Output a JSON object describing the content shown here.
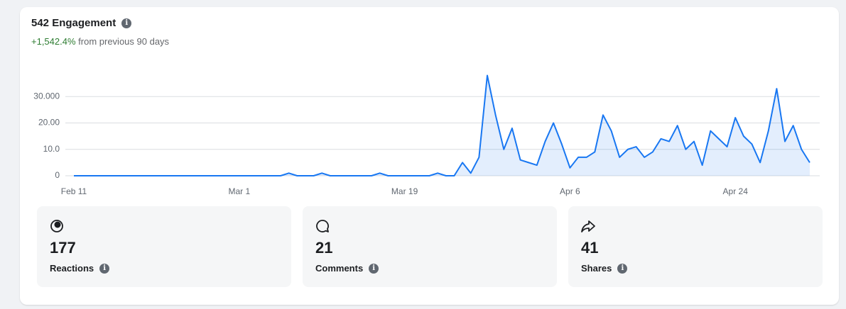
{
  "header": {
    "title": "542 Engagement",
    "change": "+1,542.4%",
    "change_text": "from previous 90 days"
  },
  "chart_data": {
    "type": "area",
    "color": "#1877f2",
    "categories": [
      "Feb 11",
      null,
      null,
      null,
      null,
      null,
      null,
      null,
      null,
      null,
      null,
      null,
      null,
      null,
      null,
      null,
      null,
      null,
      null,
      null,
      "Mar 1",
      null,
      null,
      null,
      null,
      null,
      null,
      null,
      null,
      null,
      null,
      null,
      null,
      null,
      null,
      null,
      null,
      null,
      null,
      null,
      "Mar 19",
      null,
      null,
      null,
      null,
      null,
      null,
      null,
      null,
      null,
      null,
      null,
      null,
      null,
      null,
      null,
      null,
      null,
      null,
      null,
      "Apr 6",
      null,
      null,
      null,
      null,
      null,
      null,
      null,
      null,
      null,
      null,
      null,
      null,
      null,
      null,
      null,
      null,
      null,
      null,
      null,
      "Apr 24",
      null,
      null,
      null,
      null,
      null,
      null,
      null,
      null,
      null
    ],
    "values": [
      0,
      0,
      0,
      0,
      0,
      0,
      0,
      0,
      0,
      0,
      0,
      0,
      0,
      0,
      0,
      0,
      0,
      0,
      0,
      0,
      0,
      0,
      0,
      0,
      0,
      0,
      1,
      0,
      0,
      0,
      1,
      0,
      0,
      0,
      0,
      0,
      0,
      1,
      0,
      0,
      0,
      0,
      0,
      0,
      1,
      0,
      0,
      5,
      1,
      7,
      38,
      23,
      10,
      18,
      6,
      5,
      4,
      13,
      20,
      12,
      3,
      7,
      7,
      9,
      23,
      17,
      7,
      10,
      11,
      7,
      9,
      14,
      13,
      19,
      10,
      13,
      4,
      17,
      14,
      11,
      22,
      15,
      12,
      5,
      17,
      33,
      13,
      19,
      10,
      5
    ],
    "ylim": [
      0,
      40
    ],
    "yticks": [
      0,
      {
        "value": 10,
        "label": "10.0"
      },
      {
        "value": 20,
        "label": "20.00"
      },
      {
        "value": 30,
        "label": "30.000"
      }
    ],
    "grid": true
  },
  "cards": [
    {
      "value": 177,
      "label": "Reactions"
    },
    {
      "value": 21,
      "label": "Comments"
    },
    {
      "value": 41,
      "label": "Shares"
    }
  ]
}
